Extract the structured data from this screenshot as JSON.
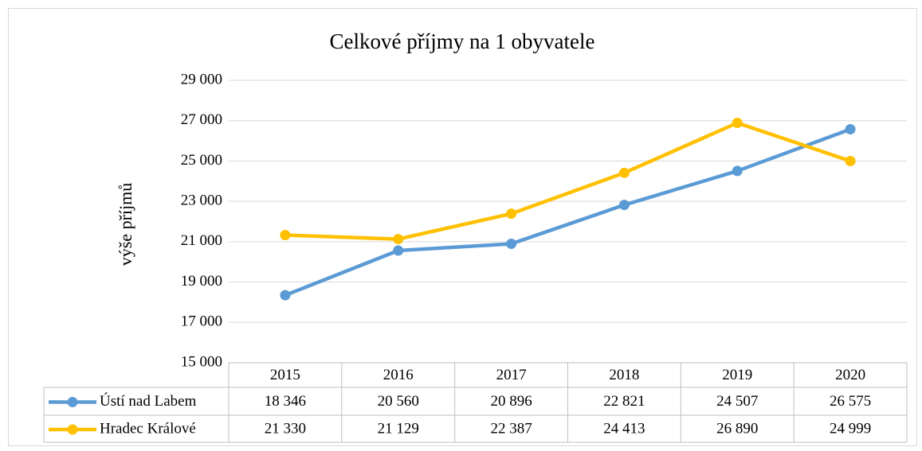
{
  "chart_data": {
    "type": "line",
    "title": "Celkové příjmy na 1 obyvatele",
    "y_label": "výše příjmů",
    "categories": [
      "2015",
      "2016",
      "2017",
      "2018",
      "2019",
      "2020"
    ],
    "series": [
      {
        "name": "Ústí nad Labem",
        "color": "#5b9bd5",
        "values": [
          18346,
          20560,
          20896,
          22821,
          24507,
          26575
        ],
        "value_labels": [
          "18 346",
          "20 560",
          "20 896",
          "22 821",
          "24 507",
          "26 575"
        ]
      },
      {
        "name": "Hradec Králové",
        "color": "#ffc000",
        "values": [
          21330,
          21129,
          22387,
          24413,
          26890,
          24999
        ],
        "value_labels": [
          "21 330",
          "21 129",
          "22 387",
          "24 413",
          "26 890",
          "24 999"
        ]
      }
    ],
    "ylim": [
      15000,
      29000
    ],
    "yticks": [
      {
        "value": 15000,
        "label": "15 000"
      },
      {
        "value": 17000,
        "label": "17 000"
      },
      {
        "value": 19000,
        "label": "19 000"
      },
      {
        "value": 21000,
        "label": "21 000"
      },
      {
        "value": 23000,
        "label": "23 000"
      },
      {
        "value": 25000,
        "label": "25 000"
      },
      {
        "value": 27000,
        "label": "27 000"
      },
      {
        "value": 29000,
        "label": "29 000"
      }
    ],
    "grid": true
  }
}
